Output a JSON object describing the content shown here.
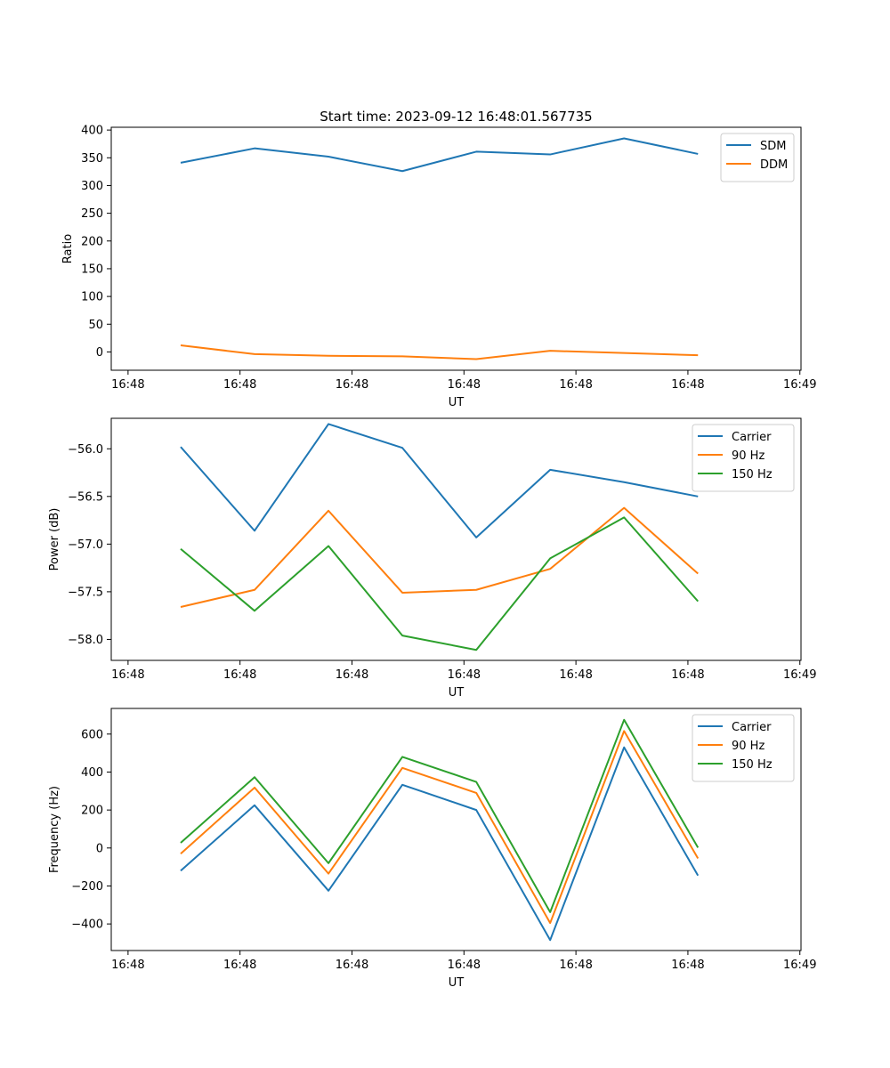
{
  "figure_title": "Start time: 2023-09-12 16:48:01.567735",
  "colors": {
    "blue": "#1f77b4",
    "orange": "#ff7f0e",
    "green": "#2ca02c"
  },
  "chart_data": [
    {
      "type": "line",
      "xlabel": "UT",
      "ylabel": "Ratio",
      "x_tick_labels": [
        "16:48",
        "16:48",
        "16:48",
        "16:48",
        "16:48",
        "16:48",
        "16:49"
      ],
      "x_tick_positions": [
        0,
        1,
        2,
        3,
        4,
        5,
        6
      ],
      "xlim": [
        -0.15,
        6.01
      ],
      "x": [
        0.47,
        1.13,
        1.79,
        2.45,
        3.11,
        3.77,
        4.43,
        5.09
      ],
      "ylim": [
        -33,
        405
      ],
      "y_ticks": [
        0,
        50,
        100,
        150,
        200,
        250,
        300,
        350,
        400
      ],
      "y_tick_labels": [
        "0",
        "50",
        "100",
        "150",
        "200",
        "250",
        "300",
        "350",
        "400"
      ],
      "legend": "top-right",
      "series": [
        {
          "name": "SDM",
          "color": "#1f77b4",
          "values": [
            341,
            367,
            352,
            326,
            361,
            356,
            385,
            357
          ]
        },
        {
          "name": "DDM",
          "color": "#ff7f0e",
          "values": [
            12,
            -4,
            -7,
            -8,
            -13,
            2,
            -2,
            -6
          ]
        }
      ]
    },
    {
      "type": "line",
      "xlabel": "UT",
      "ylabel": "Power (dB)",
      "x_tick_labels": [
        "16:48",
        "16:48",
        "16:48",
        "16:48",
        "16:48",
        "16:48",
        "16:49"
      ],
      "x_tick_positions": [
        0,
        1,
        2,
        3,
        4,
        5,
        6
      ],
      "xlim": [
        -0.15,
        6.01
      ],
      "x": [
        0.47,
        1.13,
        1.79,
        2.45,
        3.11,
        3.77,
        4.43,
        5.09
      ],
      "ylim": [
        -58.22,
        -55.68
      ],
      "y_ticks": [
        -58.0,
        -57.5,
        -57.0,
        -56.5,
        -56.0
      ],
      "y_tick_labels": [
        "−58.0",
        "−57.5",
        "−57.0",
        "−56.5",
        "−56.0"
      ],
      "legend": "top-right",
      "series": [
        {
          "name": "Carrier",
          "color": "#1f77b4",
          "values": [
            -55.98,
            -56.86,
            -55.74,
            -55.99,
            -56.93,
            -56.22,
            -56.35,
            -56.5
          ]
        },
        {
          "name": "90 Hz",
          "color": "#ff7f0e",
          "values": [
            -57.66,
            -57.48,
            -56.65,
            -57.51,
            -57.48,
            -57.26,
            -56.62,
            -57.31
          ]
        },
        {
          "name": "150 Hz",
          "color": "#2ca02c",
          "values": [
            -57.05,
            -57.7,
            -57.02,
            -57.96,
            -58.11,
            -57.15,
            -56.72,
            -57.6
          ]
        }
      ]
    },
    {
      "type": "line",
      "xlabel": "UT",
      "ylabel": "Frequency (Hz)",
      "x_tick_labels": [
        "16:48",
        "16:48",
        "16:48",
        "16:48",
        "16:48",
        "16:48",
        "16:49"
      ],
      "x_tick_positions": [
        0,
        1,
        2,
        3,
        4,
        5,
        6
      ],
      "xlim": [
        -0.15,
        6.01
      ],
      "x": [
        0.47,
        1.13,
        1.79,
        2.45,
        3.11,
        3.77,
        4.43,
        5.09
      ],
      "ylim": [
        -540,
        735
      ],
      "y_ticks": [
        -400,
        -200,
        0,
        200,
        400,
        600
      ],
      "y_tick_labels": [
        "−400",
        "−200",
        "0",
        "200",
        "400",
        "600"
      ],
      "legend": "top-right",
      "series": [
        {
          "name": "Carrier",
          "color": "#1f77b4",
          "values": [
            -120,
            225,
            -225,
            333,
            200,
            -485,
            530,
            -145
          ]
        },
        {
          "name": "90 Hz",
          "color": "#ff7f0e",
          "values": [
            -30,
            318,
            -135,
            422,
            290,
            -395,
            616,
            -55
          ]
        },
        {
          "name": "150 Hz",
          "color": "#2ca02c",
          "values": [
            27,
            373,
            -80,
            480,
            348,
            -338,
            675,
            2
          ]
        }
      ]
    }
  ]
}
